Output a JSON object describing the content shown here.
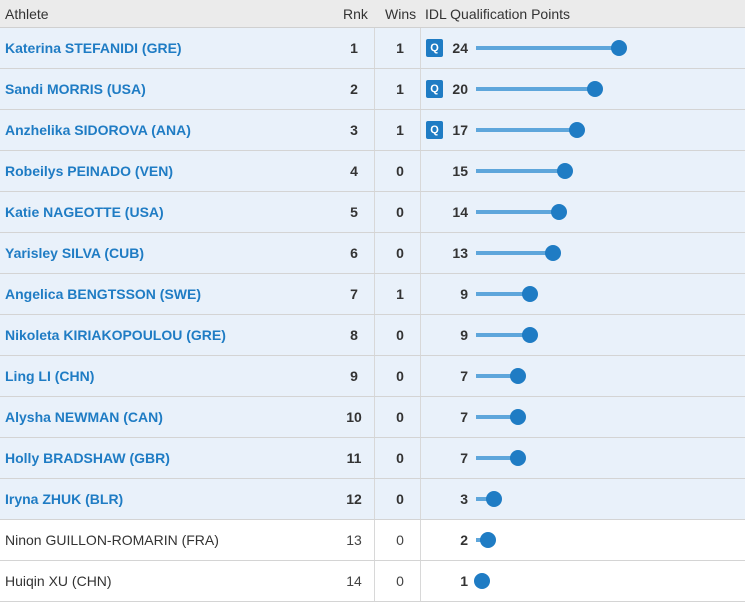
{
  "header": {
    "athlete": "Athlete",
    "rnk": "Rnk",
    "wins": "Wins",
    "points": "IDL Qualification Points"
  },
  "qualified_badge": "Q",
  "max_points": 24,
  "rows": [
    {
      "athlete": "Katerina STEFANIDI (GRE)",
      "rnk": "1",
      "wins": "1",
      "points": 24,
      "qualified_badge": true,
      "highlight": true
    },
    {
      "athlete": "Sandi MORRIS (USA)",
      "rnk": "2",
      "wins": "1",
      "points": 20,
      "qualified_badge": true,
      "highlight": true
    },
    {
      "athlete": "Anzhelika SIDOROVA (ANA)",
      "rnk": "3",
      "wins": "1",
      "points": 17,
      "qualified_badge": true,
      "highlight": true
    },
    {
      "athlete": "Robeilys PEINADO (VEN)",
      "rnk": "4",
      "wins": "0",
      "points": 15,
      "qualified_badge": false,
      "highlight": true
    },
    {
      "athlete": "Katie NAGEOTTE (USA)",
      "rnk": "5",
      "wins": "0",
      "points": 14,
      "qualified_badge": false,
      "highlight": true
    },
    {
      "athlete": "Yarisley SILVA (CUB)",
      "rnk": "6",
      "wins": "0",
      "points": 13,
      "qualified_badge": false,
      "highlight": true
    },
    {
      "athlete": "Angelica BENGTSSON (SWE)",
      "rnk": "7",
      "wins": "1",
      "points": 9,
      "qualified_badge": false,
      "highlight": true
    },
    {
      "athlete": "Nikoleta KIRIAKOPOULOU (GRE)",
      "rnk": "8",
      "wins": "0",
      "points": 9,
      "qualified_badge": false,
      "highlight": true
    },
    {
      "athlete": "Ling LI (CHN)",
      "rnk": "9",
      "wins": "0",
      "points": 7,
      "qualified_badge": false,
      "highlight": true
    },
    {
      "athlete": "Alysha NEWMAN (CAN)",
      "rnk": "10",
      "wins": "0",
      "points": 7,
      "qualified_badge": false,
      "highlight": true
    },
    {
      "athlete": "Holly BRADSHAW (GBR)",
      "rnk": "11",
      "wins": "0",
      "points": 7,
      "qualified_badge": false,
      "highlight": true
    },
    {
      "athlete": "Iryna ZHUK (BLR)",
      "rnk": "12",
      "wins": "0",
      "points": 3,
      "qualified_badge": false,
      "highlight": true
    },
    {
      "athlete": "Ninon GUILLON-ROMARIN (FRA)",
      "rnk": "13",
      "wins": "0",
      "points": 2,
      "qualified_badge": false,
      "highlight": false
    },
    {
      "athlete": "Huiqin XU (CHN)",
      "rnk": "14",
      "wins": "0",
      "points": 1,
      "qualified_badge": false,
      "highlight": false
    }
  ],
  "colors": {
    "link": "#1f7cc4",
    "bar": "#5ea6db",
    "highlight_row": "#e9f1fa",
    "header_bg": "#ebebeb"
  }
}
